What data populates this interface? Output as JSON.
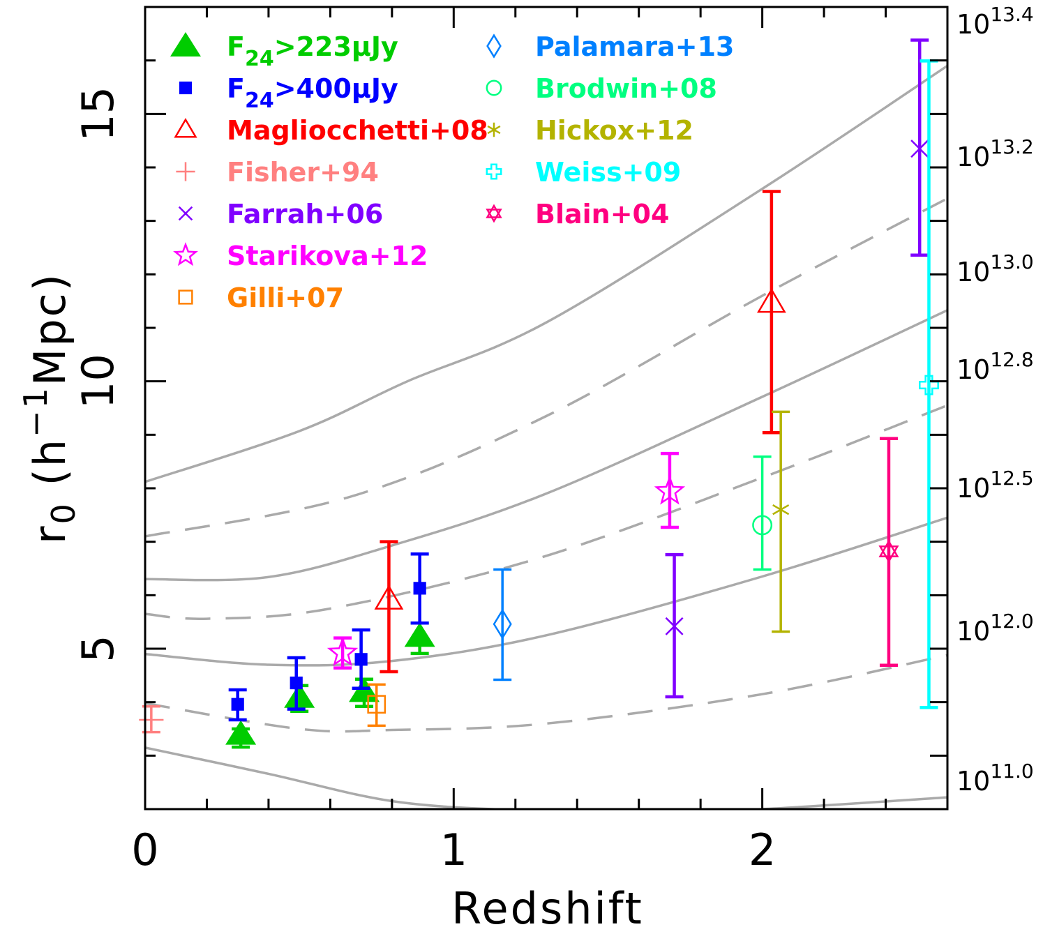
{
  "chart_data": {
    "type": "scatter",
    "xlabel": "Redshift",
    "ylabel": {
      "main": "r",
      "sub": "0",
      "mid": " (h",
      "sup": "−1",
      "end": "Mpc)"
    },
    "xlim": [
      0,
      2.6
    ],
    "ylim": [
      2,
      17
    ],
    "x_ticks": [
      "0",
      "1",
      "2"
    ],
    "x_tick_values": [
      0,
      1,
      2
    ],
    "y_ticks": [
      "5",
      "10",
      "15"
    ],
    "y_tick_values": [
      5,
      10,
      15
    ],
    "right_axis_labels": [
      {
        "base": "10",
        "exp": "13.4"
      },
      {
        "base": "10",
        "exp": "13.2"
      },
      {
        "base": "10",
        "exp": "13.0"
      },
      {
        "base": "10",
        "exp": "12.8"
      },
      {
        "base": "10",
        "exp": "12.5"
      },
      {
        "base": "10",
        "exp": "12.0"
      },
      {
        "base": "10",
        "exp": "11.0"
      }
    ],
    "grid": false,
    "legend_placement": "top-left",
    "model_curves": [
      {
        "style": "solid",
        "color": "#aaaaaa",
        "points": [
          [
            0,
            8.12
          ],
          [
            0.5,
            9.07
          ],
          [
            0.85,
            10.0
          ],
          [
            1.3,
            11.1
          ],
          [
            2.0,
            13.6
          ],
          [
            2.6,
            15.9
          ]
        ]
      },
      {
        "style": "dashed",
        "color": "#aaaaaa",
        "points": [
          [
            0,
            7.1
          ],
          [
            0.67,
            7.85
          ],
          [
            1.3,
            9.35
          ],
          [
            2.0,
            11.6
          ],
          [
            2.6,
            13.42
          ]
        ]
      },
      {
        "style": "solid",
        "color": "#aaaaaa",
        "points": [
          [
            0,
            6.3
          ],
          [
            0.4,
            6.34
          ],
          [
            0.8,
            6.93
          ],
          [
            1.3,
            7.9
          ],
          [
            2.0,
            9.71
          ],
          [
            2.6,
            11.33
          ]
        ]
      },
      {
        "style": "dashed",
        "color": "#aaaaaa",
        "points": [
          [
            0,
            5.65
          ],
          [
            0.2,
            5.56
          ],
          [
            0.6,
            5.75
          ],
          [
            1.28,
            6.7
          ],
          [
            2.0,
            8.2
          ],
          [
            2.6,
            9.55
          ]
        ]
      },
      {
        "style": "solid",
        "color": "#aaaaaa",
        "points": [
          [
            0,
            4.9
          ],
          [
            0.4,
            4.7
          ],
          [
            0.8,
            4.77
          ],
          [
            1.3,
            5.25
          ],
          [
            2.0,
            6.35
          ],
          [
            2.6,
            7.45
          ]
        ]
      },
      {
        "style": "dashed",
        "color": "#aaaaaa",
        "points": [
          [
            0,
            3.98
          ],
          [
            0.5,
            3.5
          ],
          [
            0.8,
            3.48
          ],
          [
            1.3,
            3.6
          ],
          [
            2.0,
            4.15
          ],
          [
            2.6,
            4.88
          ]
        ]
      },
      {
        "style": "solid",
        "color": "#aaaaaa",
        "points": [
          [
            0,
            3.15
          ],
          [
            0.4,
            2.66
          ],
          [
            0.8,
            2.15
          ],
          [
            1.2,
            1.98
          ],
          [
            1.6,
            1.93
          ],
          [
            2.0,
            2.0
          ],
          [
            2.6,
            2.22
          ]
        ]
      }
    ],
    "series": [
      {
        "name": "F24>223μJy",
        "label": {
          "main": "F",
          "sub": "24",
          "rest": ">223μJy"
        },
        "color": "#00cc00",
        "marker": "triangle-filled",
        "points": [
          {
            "x": 0.31,
            "y": 3.4,
            "lo": 3.16,
            "hi": 3.5
          },
          {
            "x": 0.5,
            "y": 4.09,
            "lo": 3.83,
            "hi": 4.31
          },
          {
            "x": 0.71,
            "y": 4.2,
            "lo": 3.92,
            "hi": 4.43
          },
          {
            "x": 0.89,
            "y": 5.23,
            "lo": 4.91,
            "hi": 5.48
          }
        ]
      },
      {
        "name": "F24>400μJy",
        "label": {
          "main": "F",
          "sub": "24",
          "rest": ">400μJy"
        },
        "color": "#0000ff",
        "marker": "square-filled",
        "points": [
          {
            "x": 0.3,
            "y": 3.96,
            "lo": 3.67,
            "hi": 4.23
          },
          {
            "x": 0.49,
            "y": 4.36,
            "lo": 3.87,
            "hi": 4.83
          },
          {
            "x": 0.7,
            "y": 4.8,
            "lo": 4.26,
            "hi": 5.35
          },
          {
            "x": 0.89,
            "y": 6.13,
            "lo": 5.48,
            "hi": 6.77
          }
        ]
      },
      {
        "name": "Magliocchetti+08",
        "label": {
          "main": "Magliocchetti+08"
        },
        "color": "#ff0000",
        "marker": "triangle-open",
        "points": [
          {
            "x": 0.79,
            "y": 5.92,
            "lo": 4.57,
            "hi": 7.0
          },
          {
            "x": 2.03,
            "y": 11.47,
            "lo": 9.04,
            "hi": 13.55
          }
        ]
      },
      {
        "name": "Fisher+94",
        "label": {
          "main": "Fisher+94"
        },
        "color": "#ff8080",
        "marker": "plus",
        "points": [
          {
            "x": 0.02,
            "y": 3.67,
            "lo": 3.44,
            "hi": 3.92
          }
        ]
      },
      {
        "name": "Farrah+06",
        "label": {
          "main": "Farrah+06"
        },
        "color": "#8000ff",
        "marker": "cross",
        "points": [
          {
            "x": 1.715,
            "y": 5.42,
            "lo": 4.1,
            "hi": 6.76
          },
          {
            "x": 2.51,
            "y": 14.35,
            "lo": 12.36,
            "hi": 16.38
          }
        ]
      },
      {
        "name": "Starikova+12",
        "label": {
          "main": "Starikova+12"
        },
        "color": "#ff00ff",
        "marker": "star-open",
        "points": [
          {
            "x": 0.64,
            "y": 4.92,
            "lo": 4.64,
            "hi": 5.2
          },
          {
            "x": 1.7,
            "y": 7.94,
            "lo": 7.27,
            "hi": 8.65
          }
        ]
      },
      {
        "name": "Gilli+07",
        "label": {
          "main": "Gilli+07"
        },
        "color": "#ff8000",
        "marker": "square-open",
        "points": [
          {
            "x": 0.75,
            "y": 3.96,
            "lo": 3.56,
            "hi": 4.33
          }
        ]
      },
      {
        "name": "Palamara+13",
        "label": {
          "main": "Palamara+13"
        },
        "color": "#0080ff",
        "marker": "diamond-open",
        "points": [
          {
            "x": 1.158,
            "y": 5.46,
            "lo": 4.42,
            "hi": 6.48
          }
        ]
      },
      {
        "name": "Brodwin+08",
        "label": {
          "main": "Brodwin+08"
        },
        "color": "#00ff80",
        "marker": "circle-open",
        "points": [
          {
            "x": 2.0,
            "y": 7.31,
            "lo": 6.48,
            "hi": 8.59
          }
        ]
      },
      {
        "name": "Hickox+12",
        "label": {
          "main": "Hickox+12"
        },
        "color": "#b3b300",
        "marker": "asterisk",
        "points": [
          {
            "x": 2.06,
            "y": 7.6,
            "lo": 5.32,
            "hi": 9.43
          }
        ]
      },
      {
        "name": "Weiss+09",
        "label": {
          "main": "Weiss+09"
        },
        "color": "#00ffff",
        "marker": "greek-cross-open",
        "points": [
          {
            "x": 2.54,
            "y": 9.93,
            "lo": 3.9,
            "hi": 15.99
          }
        ]
      },
      {
        "name": "Blain+04",
        "label": {
          "main": "Blain+04"
        },
        "color": "#ff0080",
        "marker": "hexagram",
        "points": [
          {
            "x": 2.41,
            "y": 6.82,
            "lo": 4.69,
            "hi": 8.93
          }
        ]
      }
    ]
  }
}
